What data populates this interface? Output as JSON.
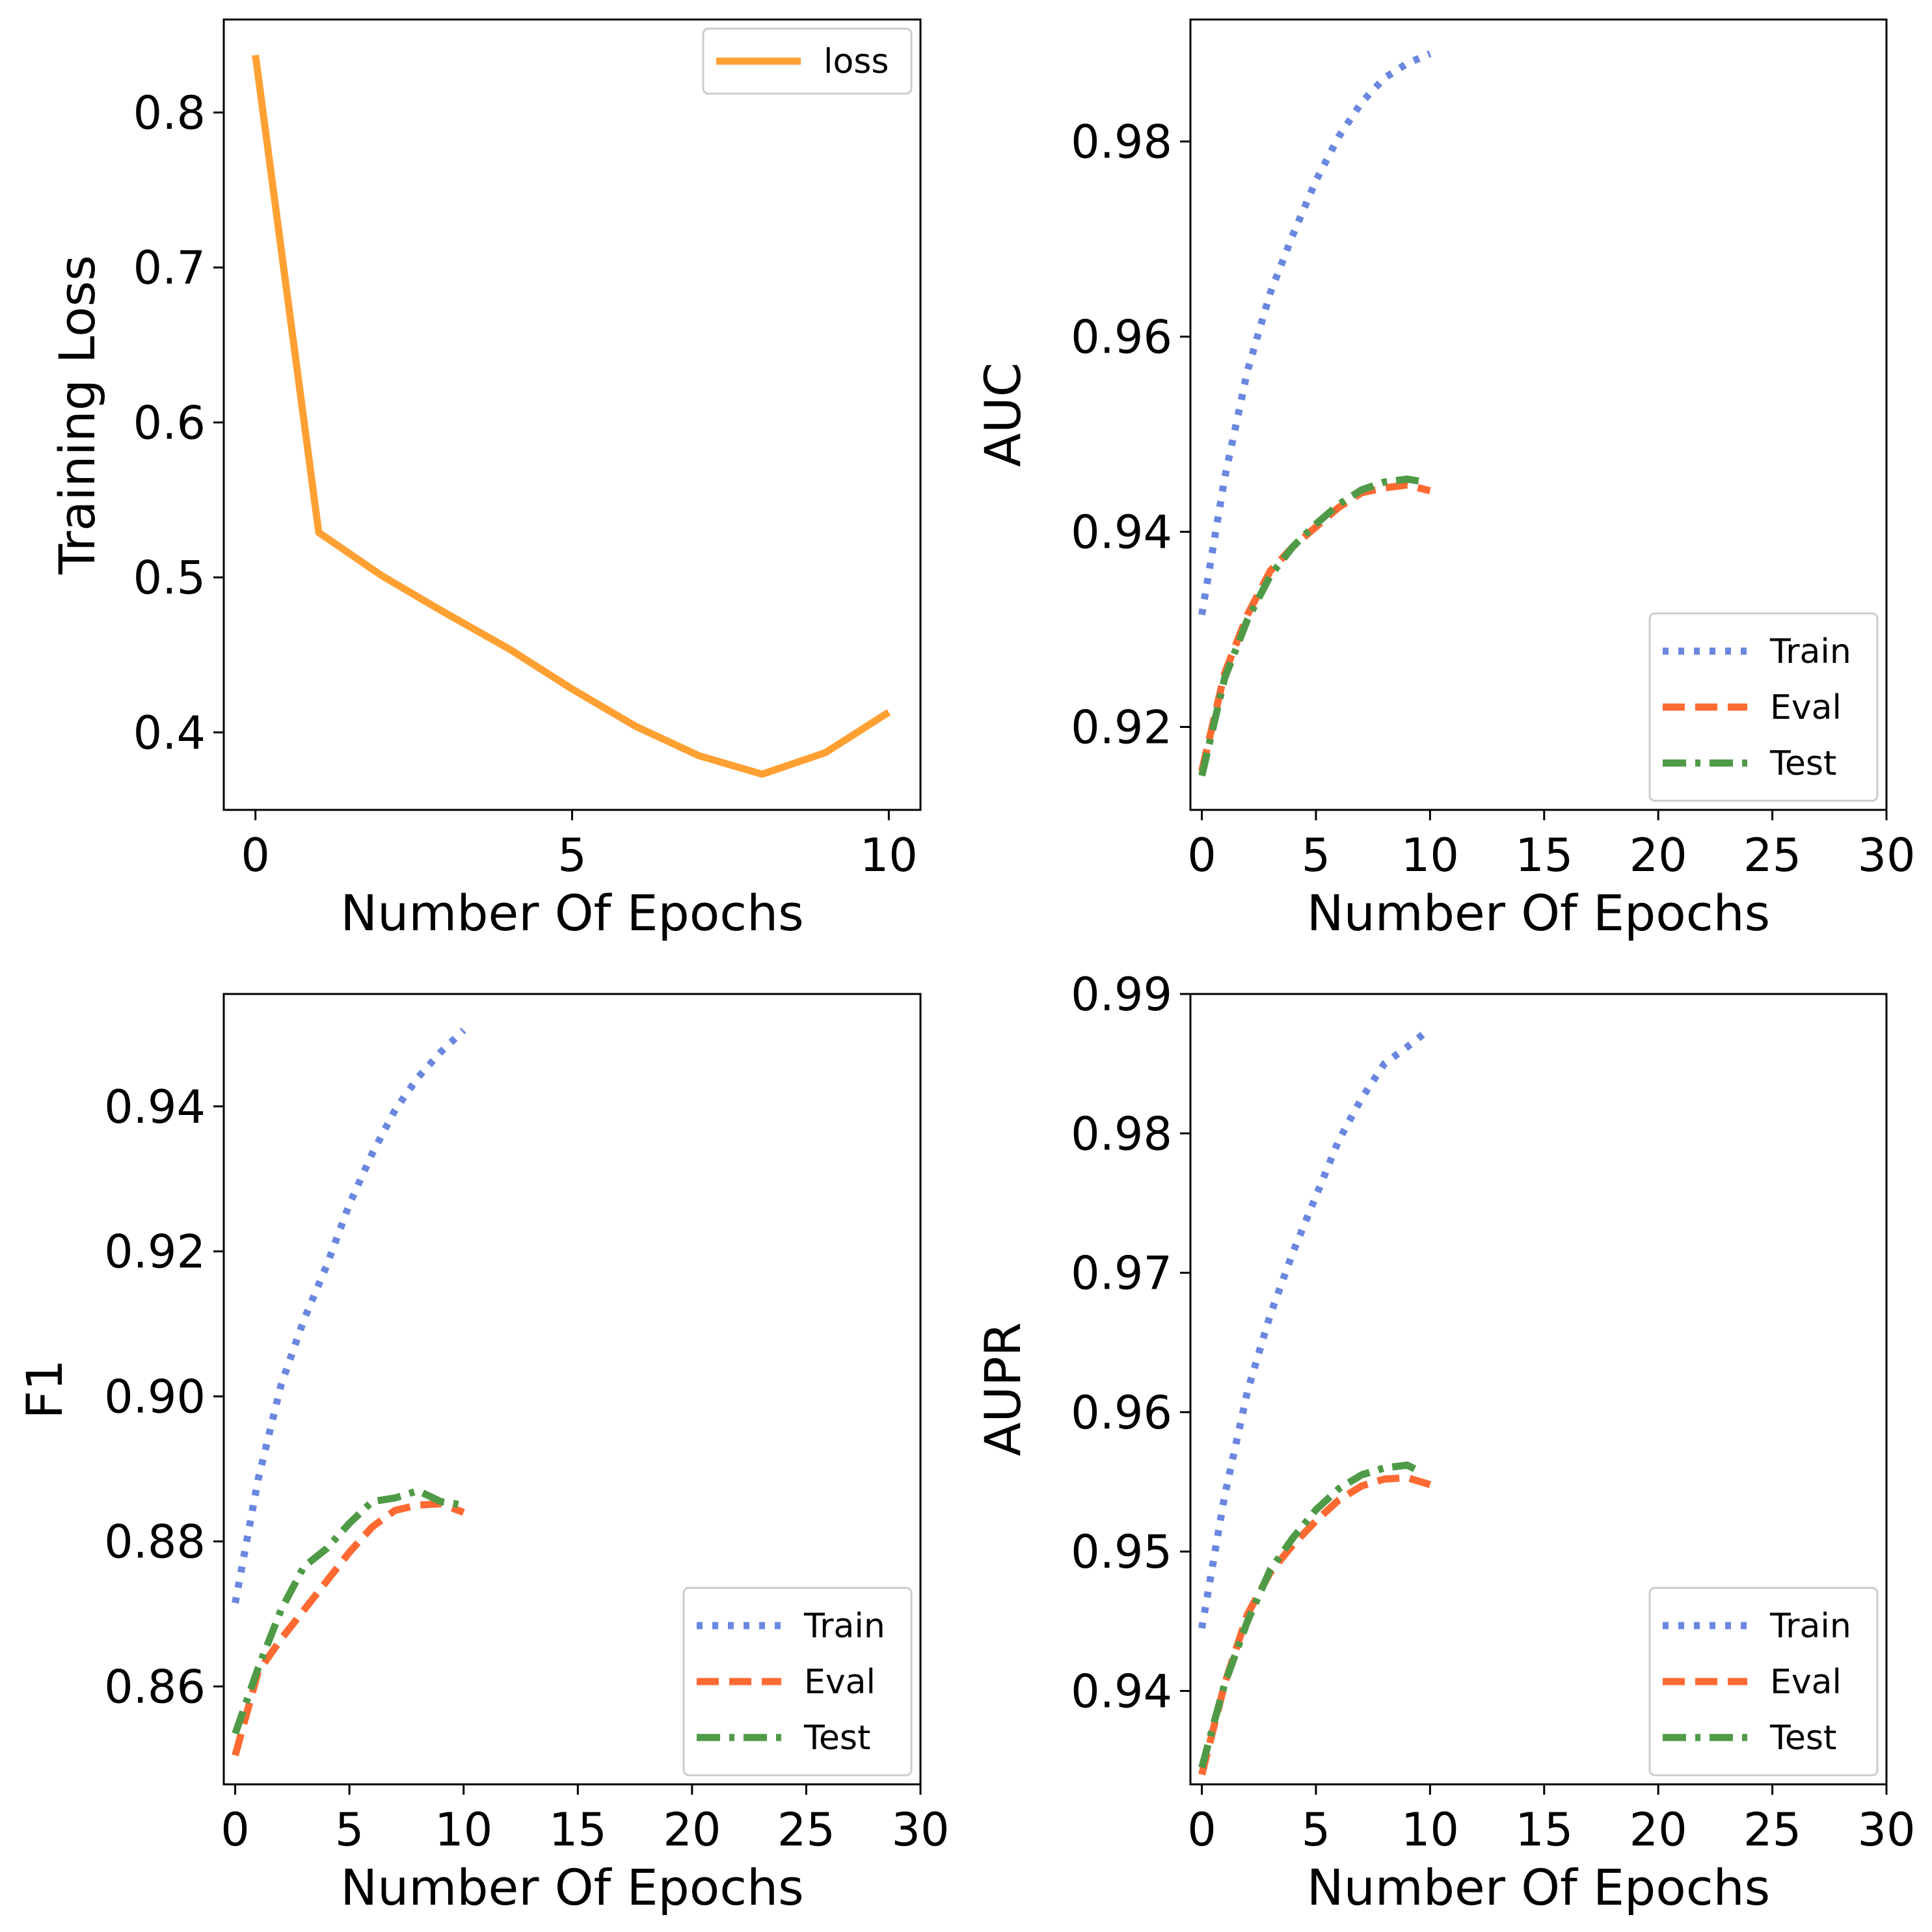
{
  "chart_data": [
    {
      "type": "line",
      "xlabel": "Number Of Epochs",
      "ylabel": "Training Loss",
      "xlim": [
        -0.5,
        10.5
      ],
      "ylim": [
        0.35,
        0.86
      ],
      "xticks": [
        0,
        5,
        10
      ],
      "yticks": [
        0.4,
        0.5,
        0.6,
        0.7,
        0.8
      ],
      "grid": false,
      "legend_position": "upper right",
      "series": [
        {
          "name": "loss",
          "color": "#ffa033",
          "style": "solid",
          "x": [
            0,
            1,
            2,
            3,
            4,
            5,
            6,
            7,
            8,
            9,
            10
          ],
          "y": [
            0.837,
            0.529,
            0.501,
            0.477,
            0.454,
            0.428,
            0.404,
            0.385,
            0.373,
            0.387,
            0.413
          ]
        }
      ]
    },
    {
      "type": "line",
      "xlabel": "Number Of Epochs",
      "ylabel": "AUC",
      "xlim": [
        -0.5,
        30
      ],
      "ylim": [
        0.9115,
        0.9925
      ],
      "xticks": [
        0,
        5,
        10,
        15,
        20,
        25,
        30
      ],
      "yticks": [
        0.92,
        0.94,
        0.96,
        0.98
      ],
      "grid": false,
      "legend_position": "lower right",
      "series": [
        {
          "name": "Train",
          "color": "#6a87e0",
          "style": "dotted",
          "x": [
            0,
            1,
            2,
            3,
            4,
            5,
            6,
            7,
            8,
            9,
            10
          ],
          "y": [
            0.9315,
            0.9455,
            0.9565,
            0.9645,
            0.9705,
            0.976,
            0.9805,
            0.984,
            0.9865,
            0.988,
            0.989
          ]
        },
        {
          "name": "Eval",
          "color": "#ff6a33",
          "style": "dashed",
          "x": [
            0,
            1,
            2,
            3,
            4,
            5,
            6,
            7,
            8,
            9,
            10
          ],
          "y": [
            0.9155,
            0.9255,
            0.9315,
            0.936,
            0.9385,
            0.9405,
            0.9425,
            0.944,
            0.9445,
            0.9448,
            0.9442
          ]
        },
        {
          "name": "Test",
          "color": "#4f9a47",
          "style": "dashdot",
          "x": [
            0,
            1,
            2,
            3,
            4,
            5,
            6,
            7,
            8,
            9,
            9.5
          ],
          "y": [
            0.915,
            0.925,
            0.931,
            0.9355,
            0.9385,
            0.9408,
            0.9428,
            0.9443,
            0.9451,
            0.9454,
            0.9452
          ]
        }
      ]
    },
    {
      "type": "line",
      "xlabel": "Number Of Epochs",
      "ylabel": "F1",
      "xlim": [
        -0.5,
        30
      ],
      "ylim": [
        0.8465,
        0.9555
      ],
      "xticks": [
        0,
        5,
        10,
        15,
        20,
        25,
        30
      ],
      "yticks": [
        0.86,
        0.88,
        0.9,
        0.92,
        0.94
      ],
      "ytick_labels": [
        "0.86",
        "0.88",
        "0.90",
        "0.92",
        "0.94"
      ],
      "grid": false,
      "legend_position": "lower right",
      "series": [
        {
          "name": "Train",
          "color": "#6a87e0",
          "style": "dotted",
          "x": [
            0,
            1,
            2,
            3,
            4,
            5,
            6,
            7,
            8,
            9,
            10
          ],
          "y": [
            0.8715,
            0.8885,
            0.9015,
            0.9105,
            0.918,
            0.9265,
            0.9335,
            0.9395,
            0.944,
            0.9475,
            0.9505
          ]
        },
        {
          "name": "Eval",
          "color": "#ff6a33",
          "style": "dashed",
          "x": [
            0,
            1,
            2,
            3,
            4,
            5,
            6,
            7,
            8,
            9,
            10
          ],
          "y": [
            0.8505,
            0.862,
            0.8665,
            0.8705,
            0.8745,
            0.8785,
            0.882,
            0.8843,
            0.885,
            0.8852,
            0.884
          ]
        },
        {
          "name": "Test",
          "color": "#4f9a47",
          "style": "dashdot",
          "x": [
            0,
            1,
            2,
            3,
            4,
            5,
            6,
            7,
            8,
            9,
            10
          ],
          "y": [
            0.8535,
            0.8625,
            0.8705,
            0.8765,
            0.879,
            0.8825,
            0.8855,
            0.886,
            0.887,
            0.8855,
            0.885
          ]
        }
      ]
    },
    {
      "type": "line",
      "xlabel": "Number Of Epochs",
      "ylabel": "AUPR",
      "xlim": [
        -0.5,
        30
      ],
      "ylim": [
        0.9333,
        0.99
      ],
      "xticks": [
        0,
        5,
        10,
        15,
        20,
        25,
        30
      ],
      "yticks": [
        0.94,
        0.95,
        0.96,
        0.97,
        0.98,
        0.99
      ],
      "grid": false,
      "legend_position": "lower right",
      "series": [
        {
          "name": "Train",
          "color": "#6a87e0",
          "style": "dotted",
          "x": [
            0,
            1,
            2,
            3,
            4,
            5,
            6,
            7,
            8,
            9,
            10
          ],
          "y": [
            0.9445,
            0.954,
            0.9615,
            0.967,
            0.9715,
            0.9755,
            0.9795,
            0.9825,
            0.985,
            0.9862,
            0.9875
          ]
        },
        {
          "name": "Eval",
          "color": "#ff6a33",
          "style": "dashed",
          "x": [
            0,
            1,
            2,
            3,
            4,
            5,
            6,
            7,
            8,
            9,
            10
          ],
          "y": [
            0.934,
            0.9405,
            0.9455,
            0.9485,
            0.9505,
            0.9522,
            0.9537,
            0.9547,
            0.9552,
            0.9553,
            0.9548
          ]
        },
        {
          "name": "Test",
          "color": "#4f9a47",
          "style": "dashdot",
          "x": [
            0,
            1,
            2,
            3,
            4,
            5,
            6,
            7,
            8,
            9,
            9.5
          ],
          "y": [
            0.9345,
            0.9405,
            0.945,
            0.9487,
            0.951,
            0.953,
            0.9545,
            0.9555,
            0.956,
            0.9562,
            0.9558
          ]
        }
      ]
    }
  ]
}
